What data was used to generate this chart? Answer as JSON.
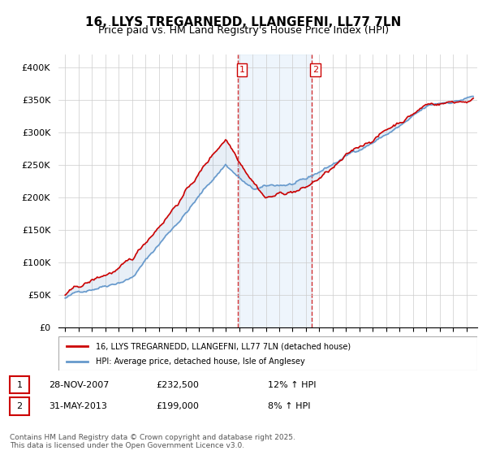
{
  "title": "16, LLYS TREGARNEDD, LLANGEFNI, LL77 7LN",
  "subtitle": "Price paid vs. HM Land Registry's House Price Index (HPI)",
  "title_fontsize": 11,
  "subtitle_fontsize": 9,
  "ylim": [
    0,
    420000
  ],
  "yticks": [
    0,
    50000,
    100000,
    150000,
    200000,
    250000,
    300000,
    350000,
    400000
  ],
  "ytick_labels": [
    "£0",
    "£50K",
    "£100K",
    "£150K",
    "£200K",
    "£250K",
    "£300K",
    "£350K",
    "£400K"
  ],
  "price_paid_color": "#cc0000",
  "hpi_color": "#6699cc",
  "vline_color": "#cc0000",
  "vspan_color": "#d0e4f7",
  "sale1_year": 2007.9,
  "sale2_year": 2013.4,
  "legend_label1": "16, LLYS TREGARNEDD, LLANGEFNI, LL77 7LN (detached house)",
  "legend_label2": "HPI: Average price, detached house, Isle of Anglesey",
  "footer": "Contains HM Land Registry data © Crown copyright and database right 2025.\nThis data is licensed under the Open Government Licence v3.0.",
  "table_row1": [
    "1",
    "28-NOV-2007",
    "£232,500",
    "12% ↑ HPI"
  ],
  "table_row2": [
    "2",
    "31-MAY-2013",
    "£199,000",
    "8% ↑ HPI"
  ]
}
